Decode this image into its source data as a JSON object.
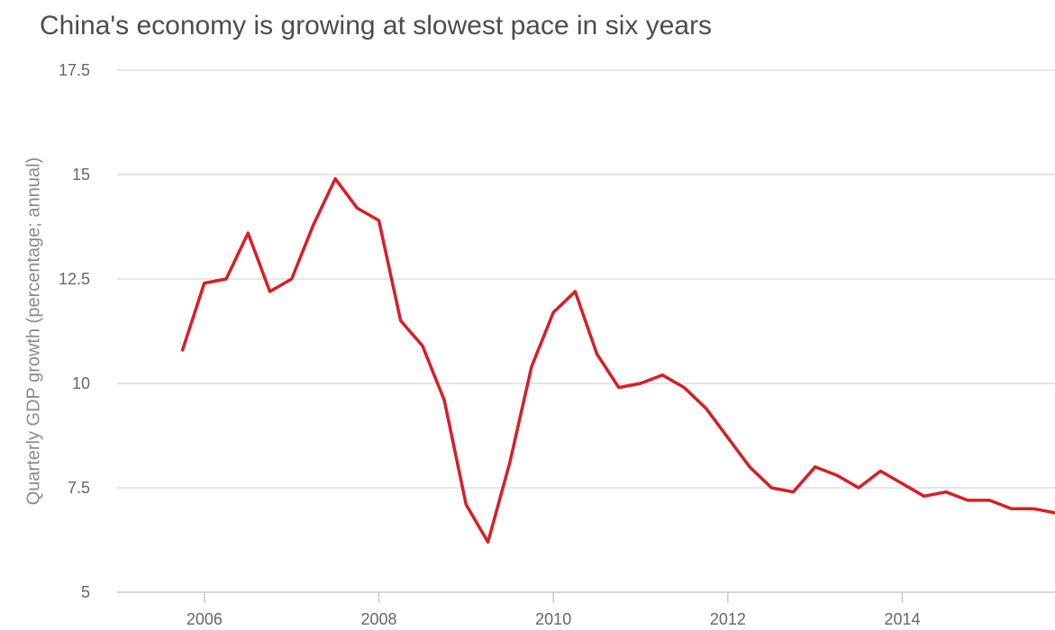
{
  "title": "China's economy is growing at slowest pace in six years",
  "chart_data": {
    "type": "line",
    "title": "China's economy is growing at slowest pace in six years",
    "xlabel": "",
    "ylabel": "Quarterly GDP growth (percentage; annual)",
    "ylim": [
      5,
      17.5
    ],
    "xlim": [
      2005.0,
      2015.75
    ],
    "grid": true,
    "legend": "none",
    "y_ticks": [
      "5",
      "7.5",
      "10",
      "12.5",
      "15",
      "17.5"
    ],
    "x_ticks": [
      "2006",
      "2008",
      "2010",
      "2012",
      "2014"
    ],
    "line_color": "#d81e25",
    "series": [
      {
        "x": [
          2005.75,
          2006.0,
          2006.25,
          2006.5,
          2006.75,
          2007.0,
          2007.25,
          2007.5,
          2007.75,
          2008.0,
          2008.25,
          2008.5,
          2008.75,
          2009.0,
          2009.25,
          2009.5,
          2009.75,
          2010.0,
          2010.25,
          2010.5,
          2010.75,
          2011.0,
          2011.25,
          2011.5,
          2011.75,
          2012.0,
          2012.25,
          2012.5,
          2012.75,
          2013.0,
          2013.25,
          2013.5,
          2013.75,
          2014.0,
          2014.25,
          2014.5,
          2014.75,
          2015.0,
          2015.25,
          2015.5,
          2015.75
        ],
        "values": [
          10.8,
          12.4,
          12.5,
          13.6,
          12.2,
          12.5,
          13.8,
          14.9,
          14.2,
          13.9,
          11.5,
          10.9,
          9.6,
          7.1,
          6.2,
          8.1,
          10.4,
          11.7,
          12.2,
          10.7,
          9.9,
          10.0,
          10.2,
          9.9,
          9.4,
          8.7,
          8.0,
          7.5,
          7.4,
          8.0,
          7.8,
          7.5,
          7.9,
          7.6,
          7.3,
          7.4,
          7.2,
          7.2,
          7.0,
          7.0,
          6.9
        ]
      }
    ]
  }
}
